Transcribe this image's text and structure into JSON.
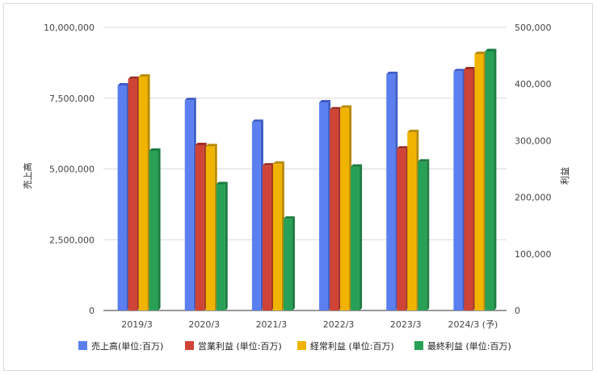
{
  "chart_data": {
    "type": "bar",
    "categories": [
      "2019/3",
      "2020/3",
      "2021/3",
      "2022/3",
      "2023/3",
      "2024/3 (予)"
    ],
    "left_axis": {
      "label": "売上高",
      "range": [
        0,
        10000000
      ],
      "ticks": [
        "0",
        "2,500,000",
        "5,000,000",
        "7,500,000",
        "10,000,000"
      ],
      "tick_values": [
        0,
        2500000,
        5000000,
        7500000,
        10000000
      ]
    },
    "right_axis": {
      "label": "利益",
      "range": [
        0,
        500000
      ],
      "ticks": [
        "0",
        "100,000",
        "200,000",
        "300,000",
        "400,000",
        "500,000"
      ],
      "tick_values": [
        0,
        100000,
        200000,
        300000,
        400000,
        500000
      ]
    },
    "grid": true,
    "legend_position": "bottom",
    "series": [
      {
        "name": "売上高(単位:百万)",
        "axis": "left",
        "color": "#5b7ff0",
        "side": "#3c5bc4",
        "values": [
          7950000,
          7430000,
          6660000,
          7350000,
          8350000,
          8450000
        ]
      },
      {
        "name": "営業利益 (単位:百万)",
        "axis": "right",
        "color": "#cf4436",
        "side": "#9e2c22",
        "values": [
          409000,
          292000,
          256000,
          355000,
          286000,
          426000
        ]
      },
      {
        "name": "経常利益 (単位:百万)",
        "axis": "right",
        "color": "#f0b400",
        "side": "#b88900",
        "values": [
          413000,
          290000,
          259000,
          358000,
          315000,
          453000
        ]
      },
      {
        "name": "最終利益 (単位:百万)",
        "axis": "right",
        "color": "#28a055",
        "side": "#1c7a3f",
        "values": [
          282000,
          223000,
          162000,
          254000,
          263000,
          458000
        ]
      }
    ]
  }
}
